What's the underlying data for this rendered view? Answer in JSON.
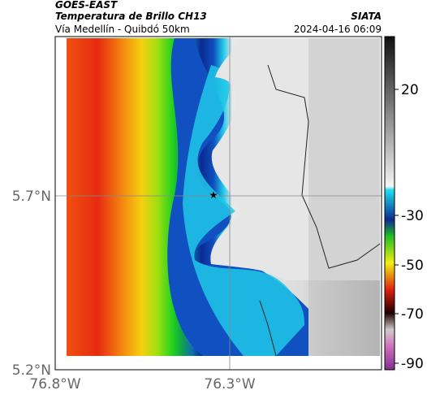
{
  "header": {
    "source": "GOES-EAST",
    "title": "Temperatura de Brillo CH13",
    "org": "SIATA",
    "subtitle": "Vía Medellín - Quibdó 50km",
    "timestamp": "2024-04-16 06:09"
  },
  "axes": {
    "lat_labels": [
      "5.7°N",
      "5.2°N"
    ],
    "lon_labels": [
      "76.8°W",
      "76.3°W"
    ]
  },
  "colorbar": {
    "ticks": [
      "20",
      "-30",
      "-50",
      "-70",
      "-90"
    ]
  }
}
